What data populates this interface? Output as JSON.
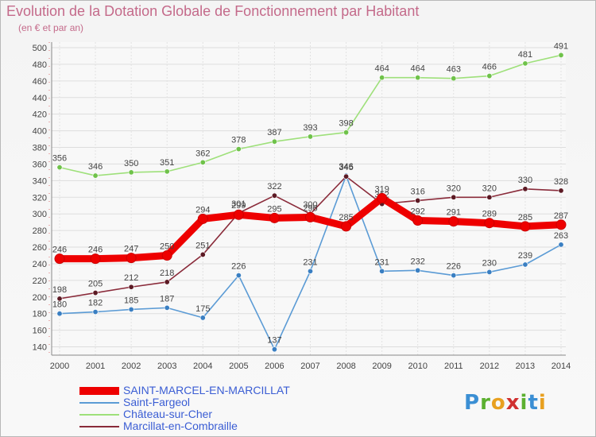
{
  "header": {
    "title": "Evolution de la Dotation Globale de Fonctionnement par Habitant",
    "subtitle": "(en € et par an)"
  },
  "logo": {
    "letters": [
      "P",
      "r",
      "o",
      "x",
      "i",
      "t",
      "i"
    ]
  },
  "chart_data": {
    "type": "line",
    "title": "Evolution de la Dotation Globale de Fonctionnement par Habitant",
    "subtitle": "(en € et par an)",
    "xlabel": "",
    "ylabel": "",
    "ylim": [
      130,
      500
    ],
    "yticks": [
      140,
      160,
      180,
      200,
      220,
      240,
      260,
      280,
      300,
      320,
      340,
      360,
      380,
      400,
      420,
      440,
      460,
      480,
      500
    ],
    "grid": true,
    "legend_position": "bottom-left",
    "x": [
      "2000",
      "2001",
      "2002",
      "2003",
      "2004",
      "2005",
      "2006",
      "2007",
      "2008",
      "2009",
      "2010",
      "2011",
      "2012",
      "2013",
      "2014"
    ],
    "series": [
      {
        "name": "Saint-Fargeol",
        "color": "#5b9bd5",
        "marker": "#3a7fc2",
        "values": [
          180,
          182,
          185,
          187,
          175,
          226,
          137,
          231,
          346,
          231,
          232,
          226,
          230,
          239,
          263
        ]
      },
      {
        "name": "Château-sur-Cher",
        "color": "#9ee07a",
        "marker": "#6fc24a",
        "values": [
          356,
          346,
          350,
          351,
          362,
          378,
          387,
          393,
          398,
          464,
          464,
          463,
          466,
          481,
          491
        ]
      },
      {
        "name": "Marcillat-en-Combraille",
        "color": "#8a2b3a",
        "marker": "#5c1a24",
        "values": [
          198,
          205,
          212,
          218,
          251,
          301,
          322,
          300,
          345,
          312,
          316,
          320,
          320,
          330,
          328
        ]
      },
      {
        "name": "SAINT-MARCEL-EN-MARCILLAT",
        "color": "#ee0000",
        "marker": "#ee0000",
        "values": [
          246,
          246,
          247,
          250,
          294,
          299,
          295,
          296,
          285,
          319,
          292,
          291,
          289,
          285,
          287
        ]
      }
    ],
    "legend_order": [
      "SAINT-MARCEL-EN-MARCILLAT",
      "Saint-Fargeol",
      "Château-sur-Cher",
      "Marcillat-en-Combraille"
    ]
  }
}
